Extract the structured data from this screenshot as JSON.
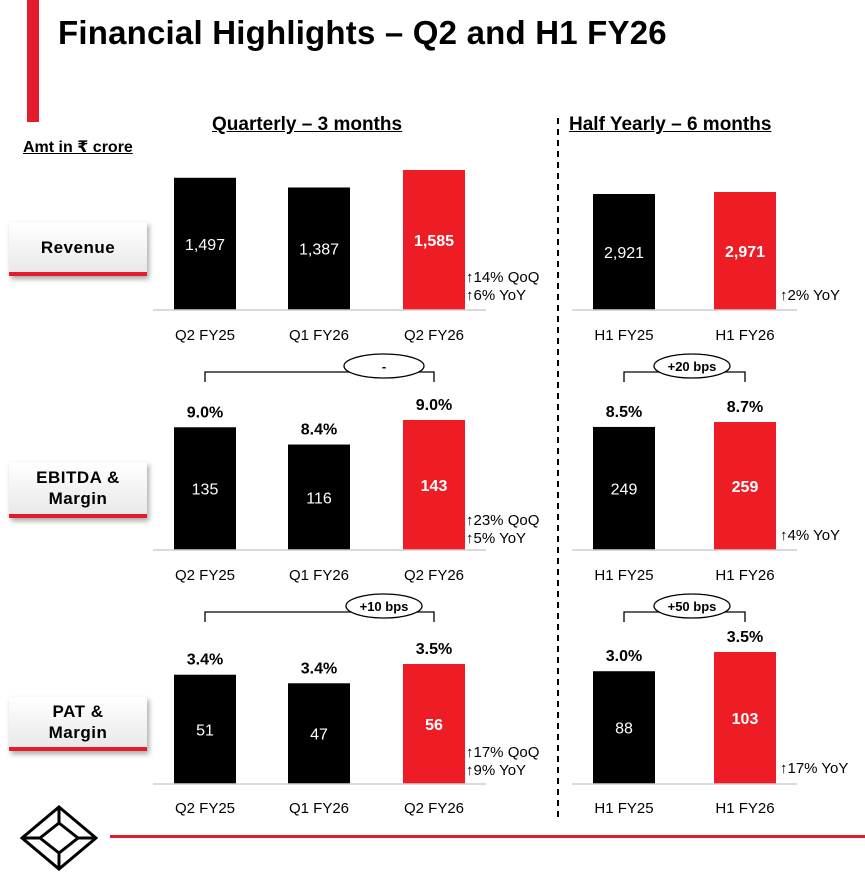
{
  "title": "Financial Highlights – Q2 and H1 FY26",
  "units": "Amt in ₹ crore",
  "sections": {
    "quarterly": "Quarterly – 3 months",
    "half_yearly": "Half Yearly – 6 months"
  },
  "metrics": [
    "Revenue",
    "EBITDA &\nMargin",
    "PAT &\nMargin"
  ],
  "colors": {
    "accent": "#e31b2c",
    "bar_dark": "#000000",
    "bar_highlight": "#ee1c25"
  },
  "chart_data": [
    {
      "type": "bar",
      "title": "Revenue",
      "period": "Quarterly – 3 months",
      "categories": [
        "Q2 FY25",
        "Q1 FY26",
        "Q2 FY26"
      ],
      "values": [
        1497,
        1387,
        1585
      ],
      "value_labels": [
        "1,497",
        "1,387",
        "1,585"
      ],
      "growth": [
        "↑14% QoQ",
        "↑6% YoY"
      ]
    },
    {
      "type": "bar",
      "title": "Revenue",
      "period": "Half Yearly – 6 months",
      "categories": [
        "H1 FY25",
        "H1 FY26"
      ],
      "values": [
        2921,
        2971
      ],
      "value_labels": [
        "2,921",
        "2,971"
      ],
      "growth": [
        "↑2% YoY"
      ]
    },
    {
      "type": "bar",
      "title": "EBITDA & Margin",
      "period": "Quarterly – 3 months",
      "categories": [
        "Q2 FY25",
        "Q1 FY26",
        "Q2 FY26"
      ],
      "values": [
        135,
        116,
        143
      ],
      "value_labels": [
        "135",
        "116",
        "143"
      ],
      "margins": [
        "9.0%",
        "8.4%",
        "9.0%"
      ],
      "margin_change": "-",
      "growth": [
        "↑23% QoQ",
        "↑5% YoY"
      ]
    },
    {
      "type": "bar",
      "title": "EBITDA & Margin",
      "period": "Half Yearly – 6 months",
      "categories": [
        "H1 FY25",
        "H1 FY26"
      ],
      "values": [
        249,
        259
      ],
      "value_labels": [
        "249",
        "259"
      ],
      "margins": [
        "8.5%",
        "8.7%"
      ],
      "margin_change": "+20 bps",
      "growth": [
        "↑4% YoY"
      ]
    },
    {
      "type": "bar",
      "title": "PAT & Margin",
      "period": "Quarterly – 3 months",
      "categories": [
        "Q2 FY25",
        "Q1 FY26",
        "Q2 FY26"
      ],
      "values": [
        51,
        47,
        56
      ],
      "value_labels": [
        "51",
        "47",
        "56"
      ],
      "margins": [
        "3.4%",
        "3.4%",
        "3.5%"
      ],
      "margin_change": "+10 bps",
      "growth": [
        "↑17% QoQ",
        "↑9% YoY"
      ]
    },
    {
      "type": "bar",
      "title": "PAT & Margin",
      "period": "Half Yearly – 6 months",
      "categories": [
        "H1 FY25",
        "H1 FY26"
      ],
      "values": [
        88,
        103
      ],
      "value_labels": [
        "88",
        "103"
      ],
      "margins": [
        "3.0%",
        "3.5%"
      ],
      "margin_change": "+50 bps",
      "growth": [
        "↑17% YoY"
      ]
    }
  ]
}
